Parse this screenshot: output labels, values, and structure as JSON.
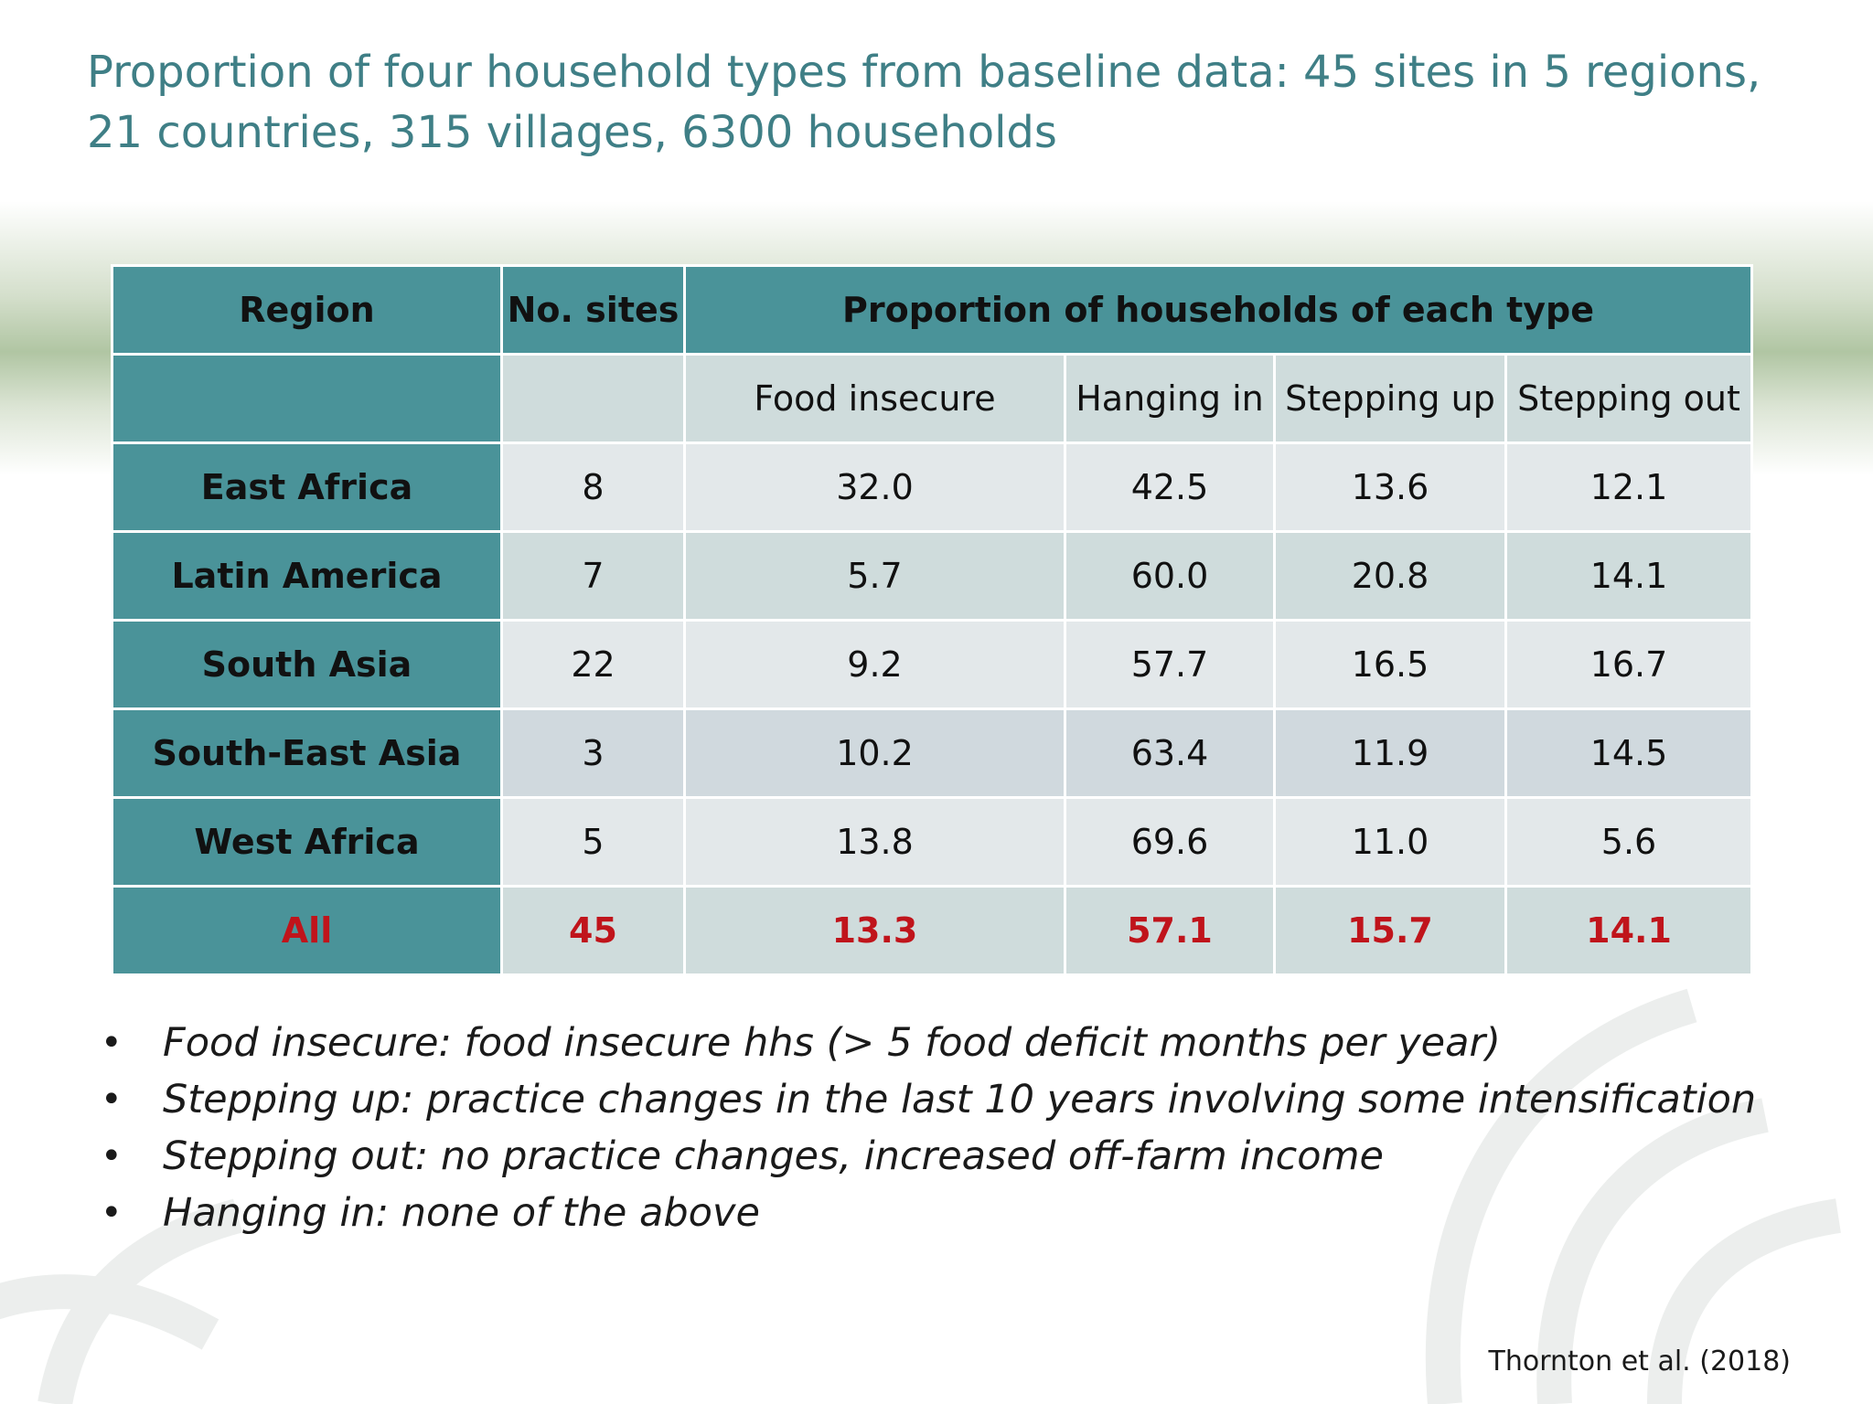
{
  "title": "Proportion of four household types from baseline data: 45 sites in 5 regions, 21 countries, 315 villages, 6300 households",
  "table": {
    "header": {
      "region": "Region",
      "sites": "No. sites",
      "group": "Proportion of households of each type"
    },
    "subheader": [
      "Food insecure",
      "Hanging in",
      "Stepping up",
      "Stepping out"
    ],
    "rows": [
      {
        "region": "East Africa",
        "sites": "8",
        "values": [
          "32.0",
          "42.5",
          "13.6",
          "12.1"
        ]
      },
      {
        "region": "Latin America",
        "sites": "7",
        "values": [
          "5.7",
          "60.0",
          "20.8",
          "14.1"
        ]
      },
      {
        "region": "South Asia",
        "sites": "22",
        "values": [
          "9.2",
          "57.7",
          "16.5",
          "16.7"
        ]
      },
      {
        "region": "South-East Asia",
        "sites": "3",
        "values": [
          "10.2",
          "63.4",
          "11.9",
          "14.5"
        ]
      },
      {
        "region": "West Africa",
        "sites": "5",
        "values": [
          "13.8",
          "69.6",
          "11.0",
          "5.6"
        ]
      }
    ],
    "total": {
      "region": "All",
      "sites": "45",
      "values": [
        "13.3",
        "57.1",
        "15.7",
        "14.1"
      ]
    }
  },
  "notes": [
    "Food insecure: food insecure hhs (> 5 food deficit months per year)",
    "Stepping up: practice changes in the last 10 years involving some intensification",
    "Stepping out: no practice changes, increased off-farm income",
    "Hanging in: none of the above"
  ],
  "bullet": "•",
  "source": "Thornton et al. (2018)",
  "colors": {
    "title": "#3f7f86",
    "header_fill": "#4a9399",
    "highlight": "#c0141b"
  }
}
